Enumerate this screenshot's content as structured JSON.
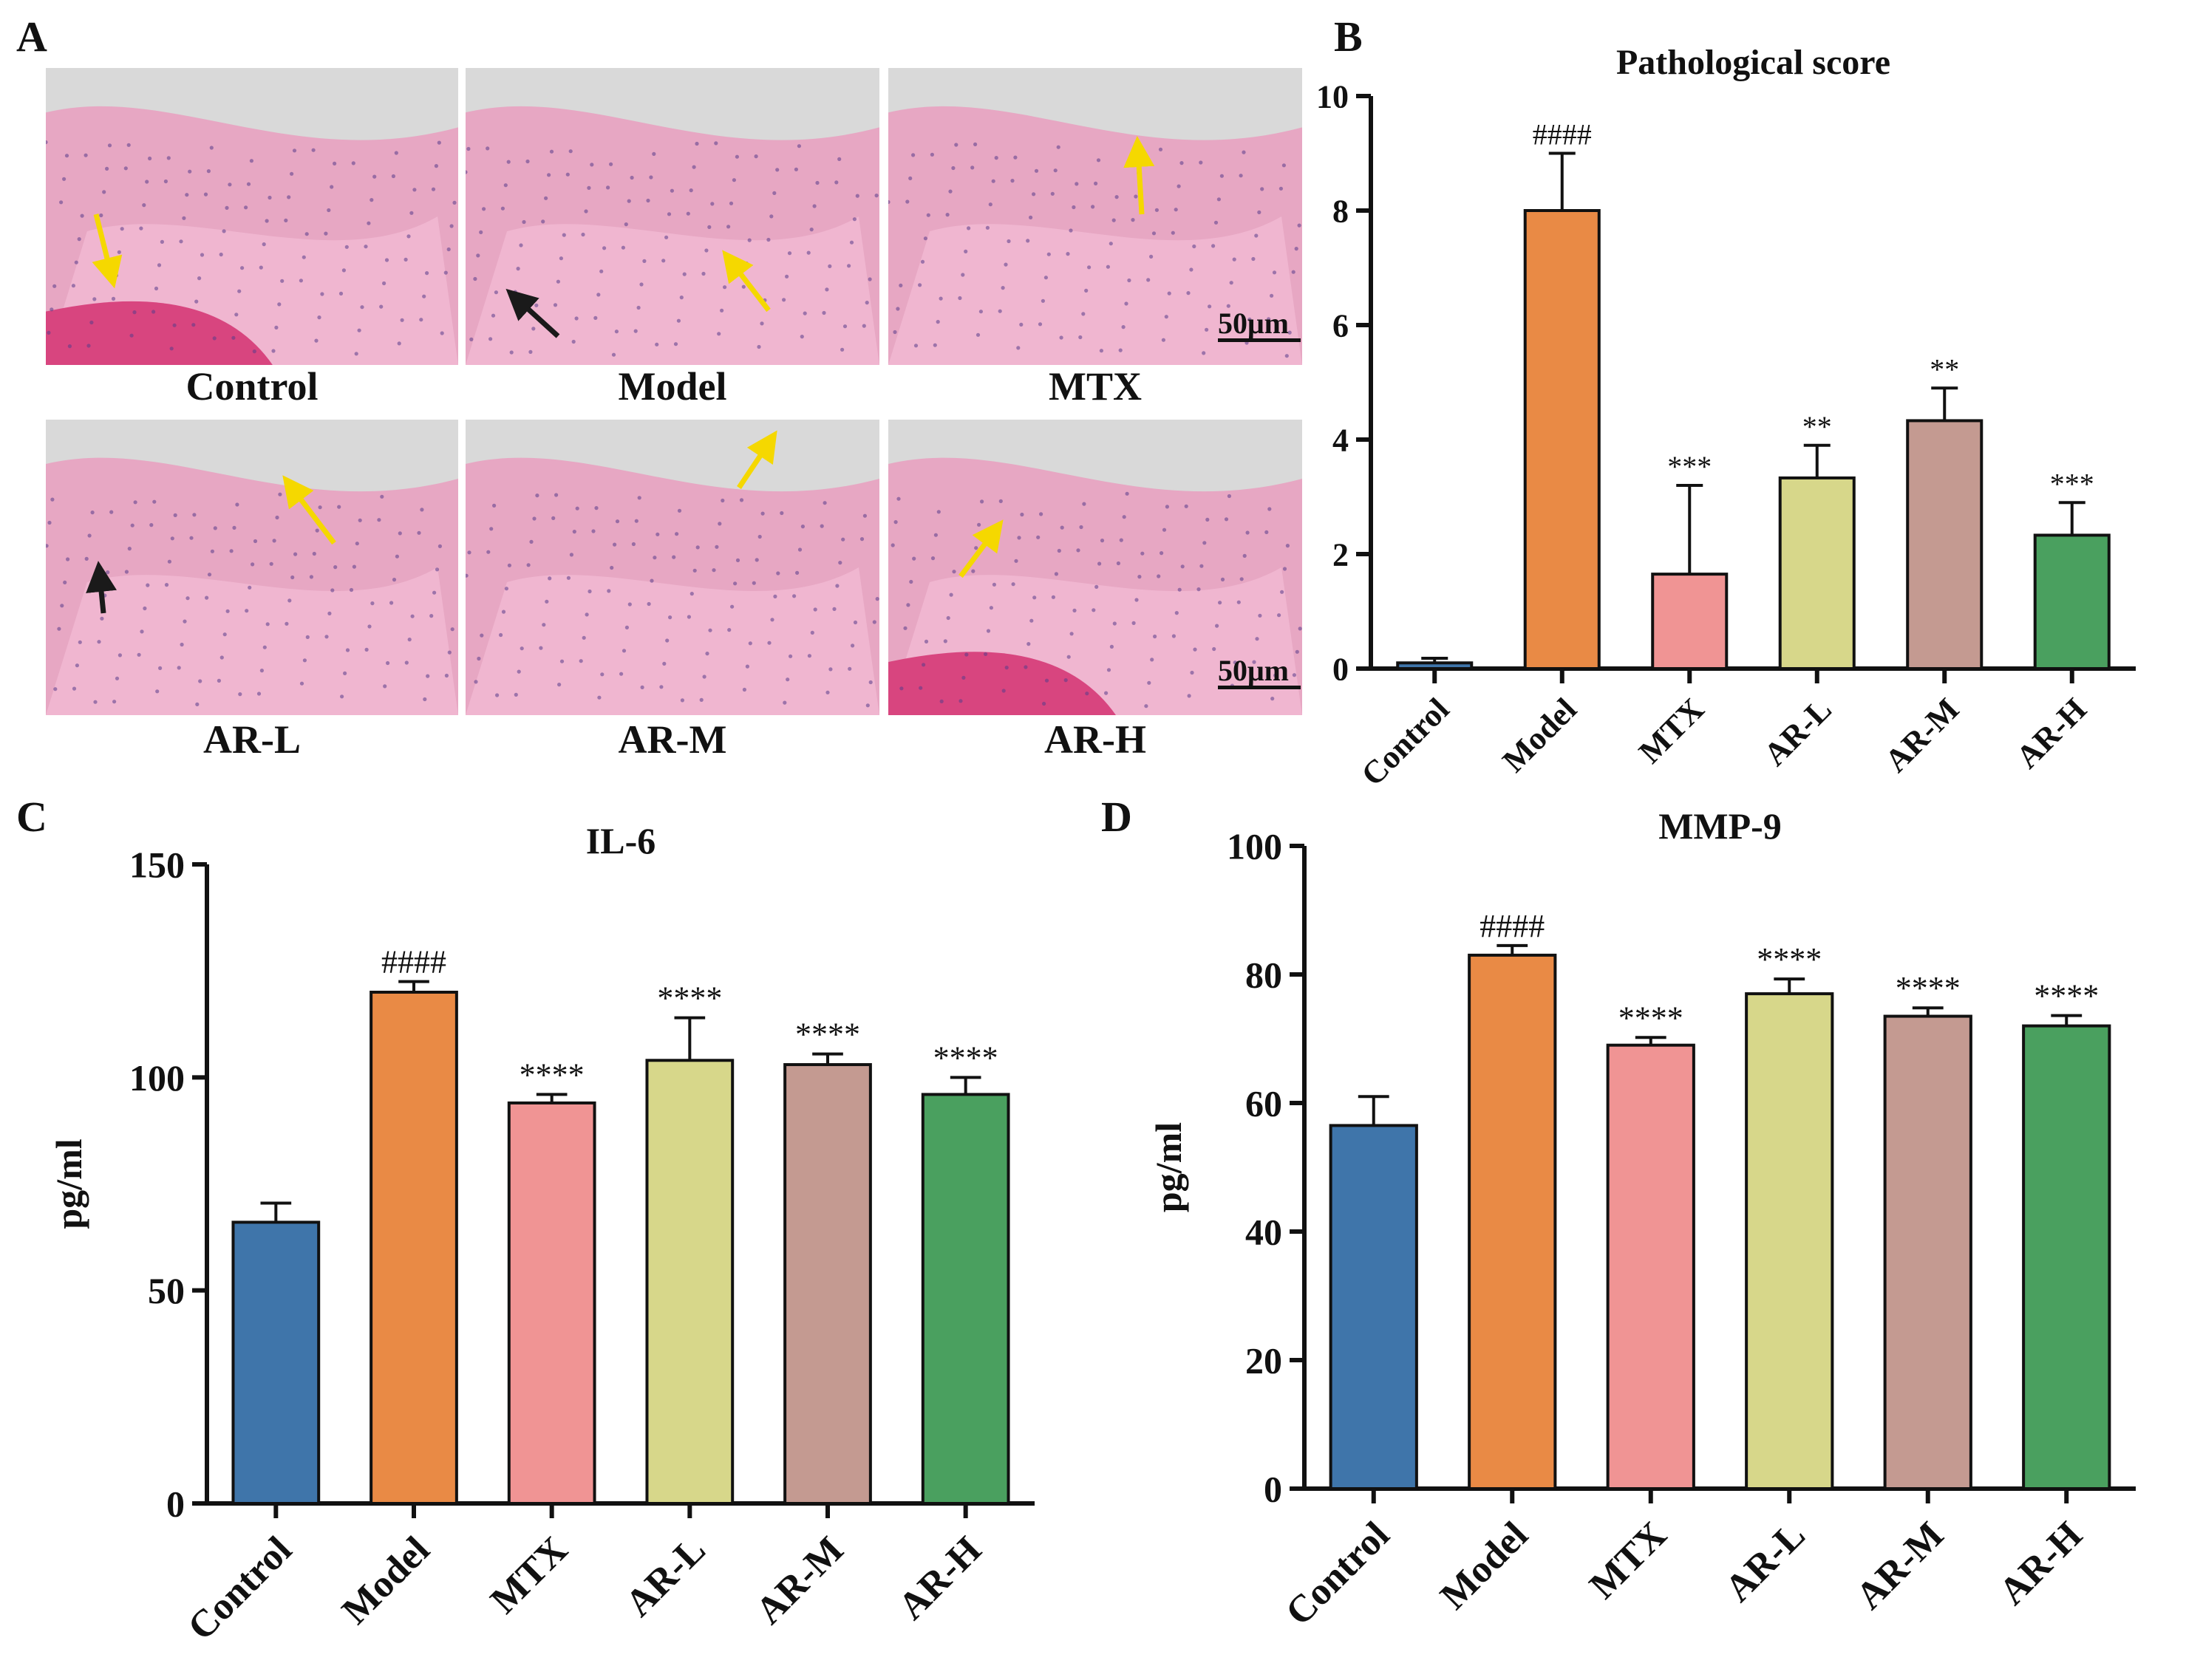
{
  "panels": {
    "A": "A",
    "B": "B",
    "C": "C",
    "D": "D"
  },
  "histology": {
    "captions": [
      "Control",
      "Model",
      "MTX",
      "AR-L",
      "AR-M",
      "AR-H"
    ],
    "scale_label": "50μm",
    "colors": {
      "arrow_yellow": "#f5d800",
      "arrow_black": "#1a1a1a",
      "tissue_pink": "#e8a1c0",
      "bone_magenta": "#d8457f",
      "background_gray": "#d9d9d9"
    }
  },
  "chart_data": [
    {
      "id": "B",
      "type": "bar",
      "title": "Pathological score",
      "ylabel": "",
      "xlabel": "",
      "categories": [
        "Control",
        "Model",
        "MTX",
        "AR-L",
        "AR-M",
        "AR-H"
      ],
      "values": [
        0.1,
        8.0,
        1.65,
        3.33,
        4.33,
        2.33
      ],
      "errors": [
        0.08,
        1.0,
        1.55,
        0.57,
        0.57,
        0.57
      ],
      "annotations": [
        "",
        "####",
        "***",
        "**",
        "**",
        "***"
      ],
      "ylim": [
        0,
        10
      ],
      "yticks": [
        0,
        2,
        4,
        6,
        8,
        10
      ],
      "ytick_labels": [
        "0",
        "2",
        "4",
        "6",
        "8",
        "10"
      ],
      "colors": [
        "#3f75aa",
        "#e98a45",
        "#f09494",
        "#d7d78a",
        "#c49a91",
        "#4aa05f"
      ],
      "grid": false,
      "legend": "none"
    },
    {
      "id": "C",
      "type": "bar",
      "title": "IL-6",
      "ylabel": "pg/ml",
      "xlabel": "",
      "categories": [
        "Control",
        "Model",
        "MTX",
        "AR-L",
        "AR-M",
        "AR-H"
      ],
      "values": [
        66,
        120,
        94,
        104,
        103,
        96
      ],
      "errors": [
        4.5,
        2.5,
        2,
        10,
        2.5,
        4
      ],
      "annotations": [
        "",
        "####",
        "****",
        "****",
        "****",
        "****"
      ],
      "ylim": [
        0,
        150
      ],
      "yticks": [
        0,
        50,
        100,
        150
      ],
      "ytick_labels": [
        "0",
        "50",
        "100",
        "150"
      ],
      "colors": [
        "#3f75aa",
        "#e98a45",
        "#f09494",
        "#d7d78a",
        "#c49a91",
        "#4aa05f"
      ],
      "grid": false,
      "legend": "none"
    },
    {
      "id": "D",
      "type": "bar",
      "title": "MMP-9",
      "ylabel": "pg/ml",
      "xlabel": "",
      "categories": [
        "Control",
        "Model",
        "MTX",
        "AR-L",
        "AR-M",
        "AR-H"
      ],
      "values": [
        56.5,
        83,
        69,
        77,
        73.5,
        72
      ],
      "errors": [
        4.5,
        1.5,
        1.2,
        2.3,
        1.3,
        1.6
      ],
      "annotations": [
        "",
        "####",
        "****",
        "****",
        "****",
        "****"
      ],
      "ylim": [
        0,
        100
      ],
      "yticks": [
        0,
        20,
        40,
        60,
        80,
        100
      ],
      "ytick_labels": [
        "0",
        "20",
        "40",
        "60",
        "80",
        "100"
      ],
      "colors": [
        "#3f75aa",
        "#e98a45",
        "#f09494",
        "#d7d78a",
        "#c49a91",
        "#4aa05f"
      ],
      "grid": false,
      "legend": "none"
    }
  ]
}
